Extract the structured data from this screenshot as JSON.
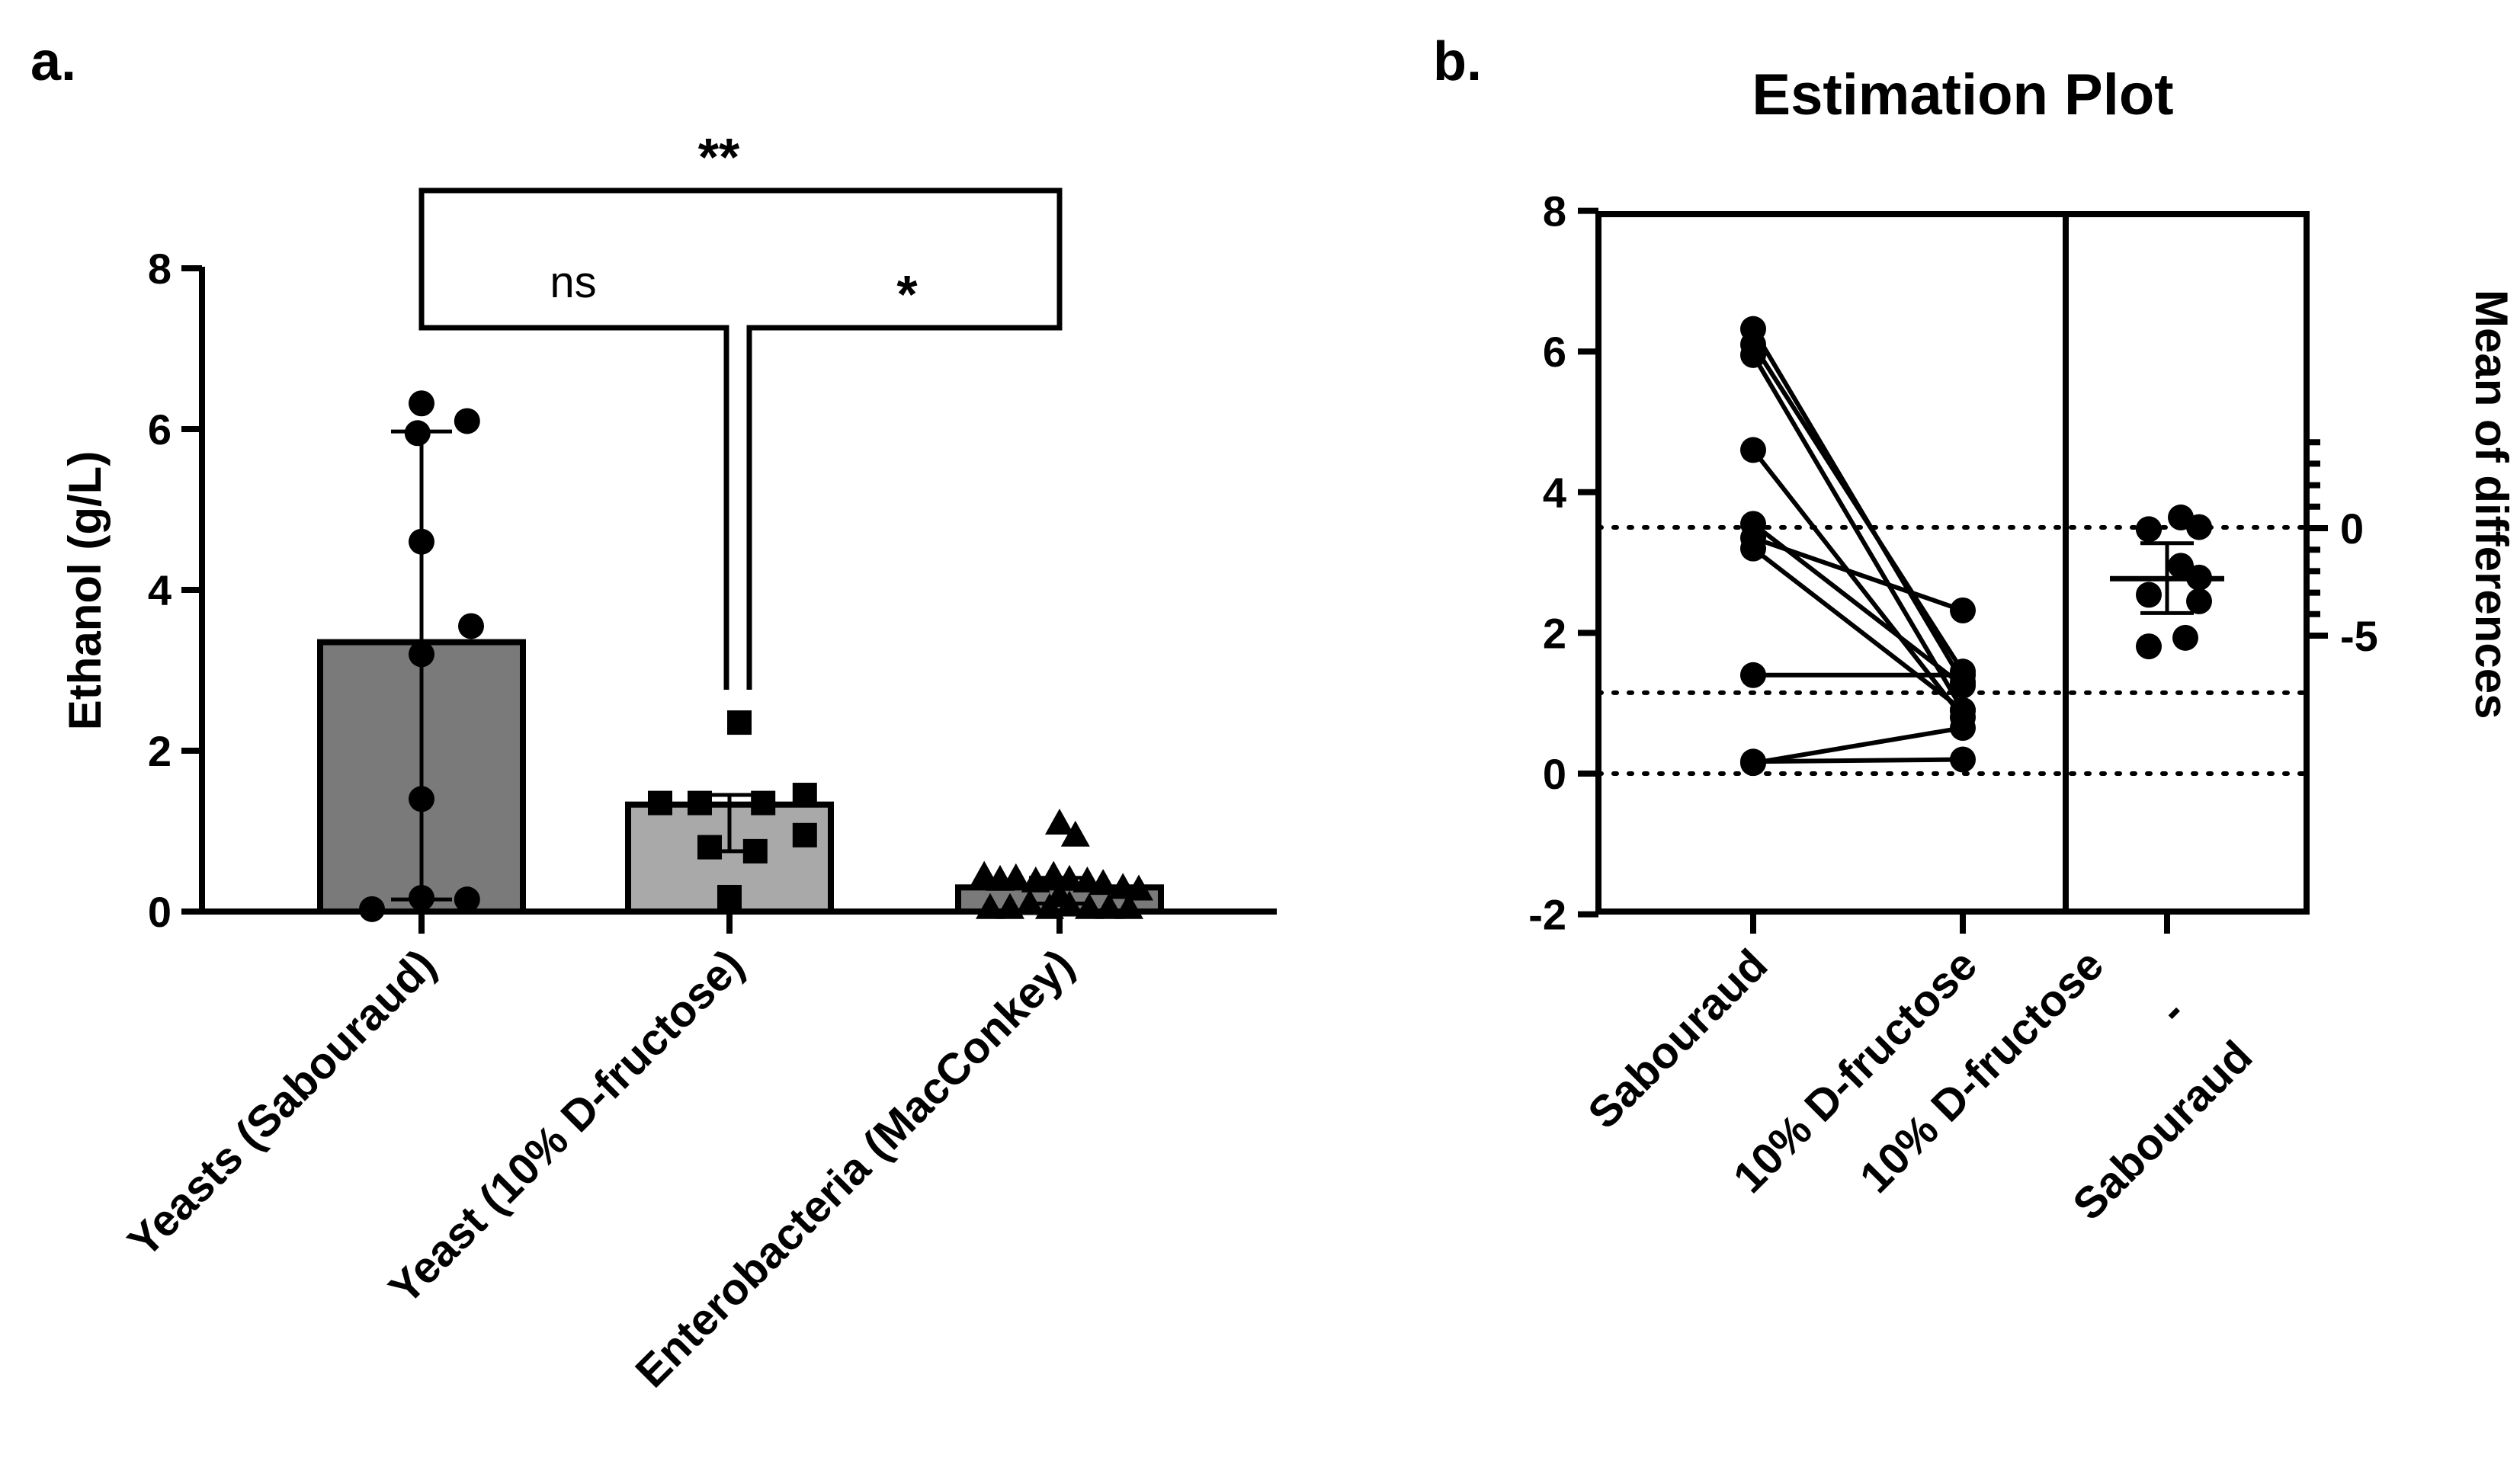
{
  "chart_data": [
    {
      "panel": "a.",
      "type": "bar",
      "title": "",
      "ylabel": "Ethanol (g/L)",
      "ylim": [
        0,
        8
      ],
      "yticks": [
        0,
        2,
        4,
        6,
        8
      ],
      "categories": [
        "Yeasts (Sabouraud)",
        "Yeast (10% D-fructose)",
        "Enterobacteria (MacConkey)"
      ],
      "values": [
        3.35,
        1.33,
        0.3
      ],
      "error": [
        [
          0.15,
          5.97
        ],
        [
          0.75,
          1.45
        ],
        [
          0.1,
          0.42
        ]
      ],
      "bar_colors": [
        "#7a7a7a",
        "#a9a9a9",
        "#7a7a7a"
      ],
      "points": [
        {
          "marker": "circle",
          "x": [
            -0.25,
            0.0,
            0.23,
            -0.02,
            0.0,
            0.25,
            0.0,
            0.0,
            0.0,
            0.23
          ],
          "y": [
            0.03,
            6.32,
            6.1,
            5.95,
            4.6,
            3.55,
            3.2,
            1.4,
            0.17,
            0.15
          ]
        },
        {
          "marker": "square",
          "x": [
            0.05,
            -0.35,
            -0.15,
            0.17,
            0.38,
            0.38,
            -0.1,
            0.13,
            0.0
          ],
          "y": [
            2.35,
            1.35,
            1.35,
            1.35,
            1.45,
            0.95,
            0.8,
            0.75,
            0.18
          ]
        },
        {
          "marker": "triangle",
          "x": [
            -0.38,
            -0.3,
            -0.22,
            -0.12,
            -0.03,
            0.05,
            0.14,
            0.22,
            0.32,
            0.4,
            -0.35,
            -0.25,
            -0.15,
            -0.05,
            0.05,
            0.15,
            0.25,
            0.35,
            0.0,
            0.08,
            0.0
          ],
          "y": [
            0.45,
            0.4,
            0.42,
            0.38,
            0.45,
            0.4,
            0.38,
            0.35,
            0.3,
            0.28,
            0.05,
            0.05,
            0.1,
            0.05,
            0.08,
            0.05,
            0.05,
            0.05,
            1.1,
            0.95,
            0.2
          ]
        }
      ],
      "significance": [
        {
          "from": 0,
          "to": 1,
          "label": "ns"
        },
        {
          "from": 1,
          "to": 2,
          "label": "*"
        },
        {
          "from": 0,
          "to": 2,
          "label": "**"
        }
      ]
    },
    {
      "panel": "b.",
      "type": "scatter",
      "title": "Estimation Plot",
      "ylim": [
        -2,
        8
      ],
      "yticks": [
        -2,
        0,
        2,
        4,
        6,
        8
      ],
      "categories": [
        "Sabouraud",
        "10% D-fructose"
      ],
      "pairs": [
        [
          6.32,
          1.3
        ],
        [
          6.1,
          1.45
        ],
        [
          5.95,
          0.9
        ],
        [
          4.6,
          0.8
        ],
        [
          3.55,
          1.25
        ],
        [
          3.35,
          2.32
        ],
        [
          3.2,
          0.9
        ],
        [
          1.4,
          1.4
        ],
        [
          0.17,
          0.2
        ],
        [
          0.15,
          0.65
        ]
      ],
      "reference_lines": [
        3.5,
        1.15,
        0.0
      ],
      "difference": {
        "label_top": "10% D-fructose",
        "label_sep": "-",
        "label_bottom": "Sabouraud",
        "right_ylabel": "Mean of differences",
        "right_yticks": [
          0,
          -5
        ],
        "right_ylim": [
          -5.5,
          4.0
        ],
        "mean": -2.35,
        "ci": [
          -3.95,
          -0.7
        ],
        "points": [
          0.5,
          -0.05,
          0.05,
          -0.05,
          -2.3,
          -1.75,
          -3.1,
          -3.4,
          -5.1,
          -5.5
        ]
      }
    }
  ]
}
